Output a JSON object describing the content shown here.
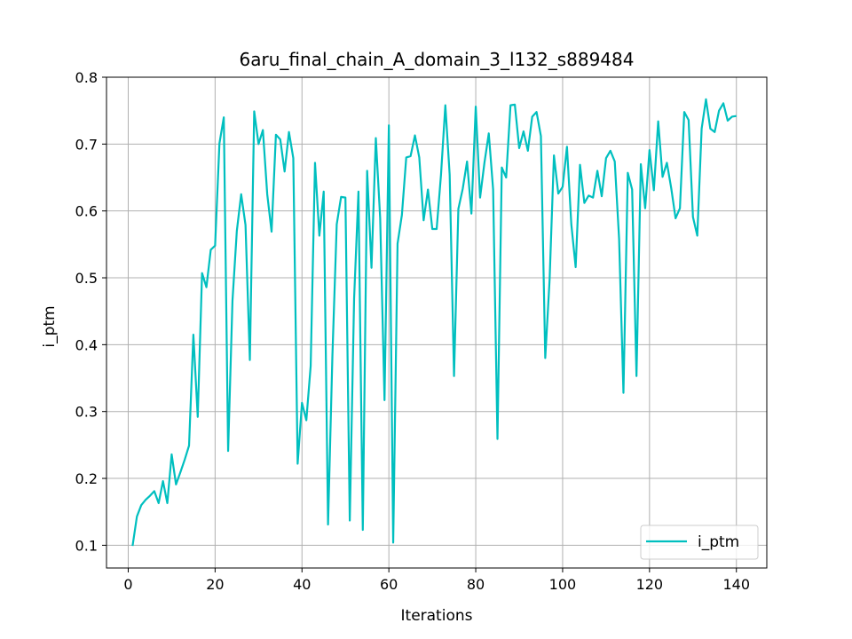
{
  "chart_data": {
    "type": "line",
    "title": "6aru_final_chain_A_domain_3_l132_s889484",
    "xlabel": "Iterations",
    "ylabel": "i_ptm",
    "xlim": [
      -5,
      147
    ],
    "ylim": [
      0.066,
      0.8
    ],
    "xticks": [
      0,
      20,
      40,
      60,
      80,
      100,
      120,
      140
    ],
    "xtick_labels": [
      "0",
      "20",
      "40",
      "60",
      "80",
      "100",
      "120",
      "140"
    ],
    "yticks": [
      0.1,
      0.2,
      0.3,
      0.4,
      0.5,
      0.6,
      0.7,
      0.8
    ],
    "ytick_labels": [
      "0.1",
      "0.2",
      "0.3",
      "0.4",
      "0.5",
      "0.6",
      "0.7",
      "0.8"
    ],
    "grid": true,
    "legend_position": "lower right",
    "series": [
      {
        "name": "i_ptm",
        "color": "#00bfbf",
        "x": [
          1,
          2,
          3,
          4,
          5,
          6,
          7,
          8,
          9,
          10,
          11,
          12,
          13,
          14,
          15,
          16,
          17,
          18,
          19,
          20,
          21,
          22,
          23,
          24,
          25,
          26,
          27,
          28,
          29,
          30,
          31,
          32,
          33,
          34,
          35,
          36,
          37,
          38,
          39,
          40,
          41,
          42,
          43,
          44,
          45,
          46,
          47,
          48,
          49,
          50,
          51,
          52,
          53,
          54,
          55,
          56,
          57,
          58,
          59,
          60,
          61,
          62,
          63,
          64,
          65,
          66,
          67,
          68,
          69,
          70,
          71,
          72,
          73,
          74,
          75,
          76,
          77,
          78,
          79,
          80,
          81,
          82,
          83,
          84,
          85,
          86,
          87,
          88,
          89,
          90,
          91,
          92,
          93,
          94,
          95,
          96,
          97,
          98,
          99,
          100,
          101,
          102,
          103,
          104,
          105,
          106,
          107,
          108,
          109,
          110,
          111,
          112,
          113,
          114,
          115,
          116,
          117,
          118,
          119,
          120,
          121,
          122,
          123,
          124,
          125,
          126,
          127,
          128,
          129,
          130,
          131,
          132,
          133,
          134,
          135,
          136,
          137,
          138,
          139,
          140
        ],
        "values": [
          0.099,
          0.143,
          0.16,
          0.168,
          0.174,
          0.181,
          0.163,
          0.196,
          0.163,
          0.236,
          0.191,
          0.209,
          0.228,
          0.249,
          0.415,
          0.292,
          0.507,
          0.486,
          0.542,
          0.548,
          0.701,
          0.74,
          0.241,
          0.466,
          0.57,
          0.625,
          0.579,
          0.377,
          0.749,
          0.7,
          0.721,
          0.625,
          0.569,
          0.714,
          0.707,
          0.659,
          0.718,
          0.679,
          0.222,
          0.313,
          0.287,
          0.368,
          0.672,
          0.563,
          0.629,
          0.131,
          0.383,
          0.58,
          0.621,
          0.62,
          0.137,
          0.469,
          0.629,
          0.123,
          0.66,
          0.515,
          0.709,
          0.589,
          0.317,
          0.728,
          0.104,
          0.551,
          0.594,
          0.68,
          0.682,
          0.713,
          0.68,
          0.586,
          0.632,
          0.573,
          0.573,
          0.654,
          0.758,
          0.654,
          0.353,
          0.603,
          0.633,
          0.674,
          0.596,
          0.756,
          0.62,
          0.672,
          0.716,
          0.632,
          0.259,
          0.665,
          0.65,
          0.758,
          0.759,
          0.694,
          0.719,
          0.69,
          0.741,
          0.748,
          0.712,
          0.38,
          0.497,
          0.683,
          0.626,
          0.636,
          0.696,
          0.58,
          0.516,
          0.669,
          0.612,
          0.623,
          0.62,
          0.66,
          0.622,
          0.679,
          0.69,
          0.674,
          0.558,
          0.328,
          0.657,
          0.632,
          0.353,
          0.67,
          0.604,
          0.691,
          0.631,
          0.734,
          0.651,
          0.672,
          0.634,
          0.589,
          0.604,
          0.748,
          0.736,
          0.591,
          0.563,
          0.723,
          0.767,
          0.723,
          0.718,
          0.75,
          0.761,
          0.735,
          0.741,
          0.742
        ]
      }
    ]
  }
}
